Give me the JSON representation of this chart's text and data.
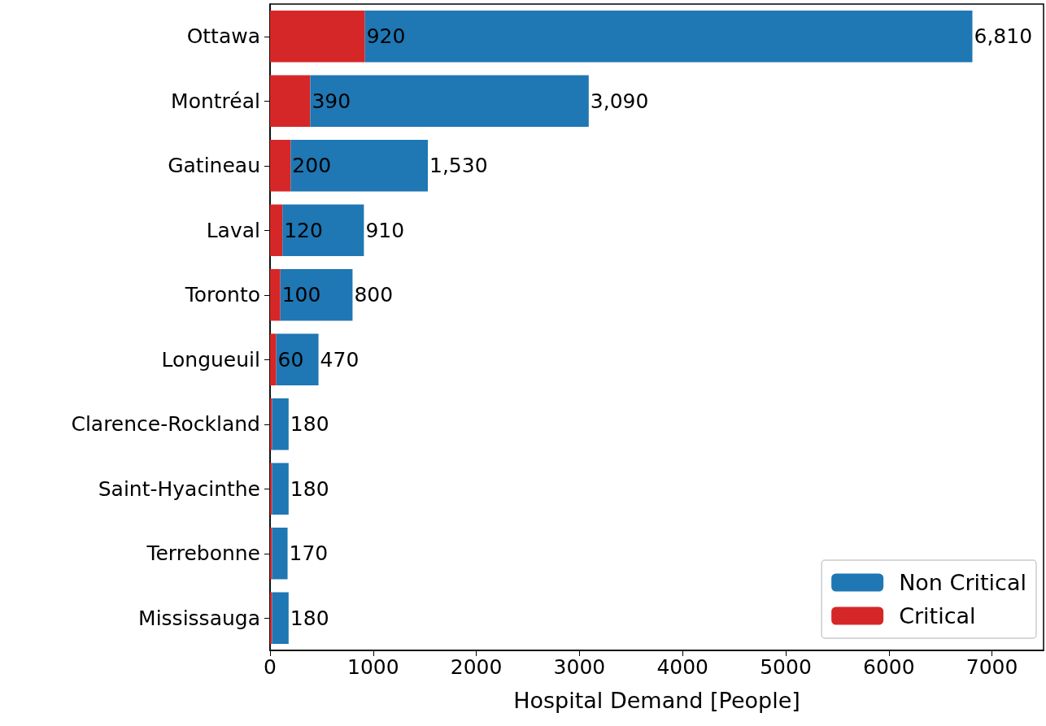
{
  "chart_data": {
    "type": "bar",
    "orientation": "horizontal",
    "stacked": true,
    "categories": [
      "Ottawa",
      "Montréal",
      "Gatineau",
      "Laval",
      "Toronto",
      "Longueuil",
      "Clarence-Rockland",
      "Saint-Hyacinthe",
      "Terrebonne",
      "Mississauga"
    ],
    "series": [
      {
        "name": "Critical",
        "color": "#d62728",
        "values": [
          920,
          390,
          200,
          120,
          100,
          60,
          20,
          20,
          20,
          20
        ],
        "value_labels": [
          "920",
          "390",
          "200",
          "120",
          "100",
          "60",
          null,
          null,
          null,
          null
        ]
      },
      {
        "name": "Non Critical",
        "color": "#1f77b4",
        "values": [
          5890,
          2700,
          1330,
          790,
          700,
          410,
          160,
          160,
          150,
          160
        ]
      }
    ],
    "totals": [
      "6,810",
      "3,090",
      "1,530",
      "910",
      "800",
      "470",
      "180",
      "180",
      "170",
      "180"
    ],
    "xlabel": "Hospital Demand [People]",
    "xlim": [
      0,
      7500
    ],
    "xticks": [
      0,
      1000,
      2000,
      3000,
      4000,
      5000,
      6000,
      7000
    ],
    "grid": false,
    "legend": "bottom right"
  }
}
